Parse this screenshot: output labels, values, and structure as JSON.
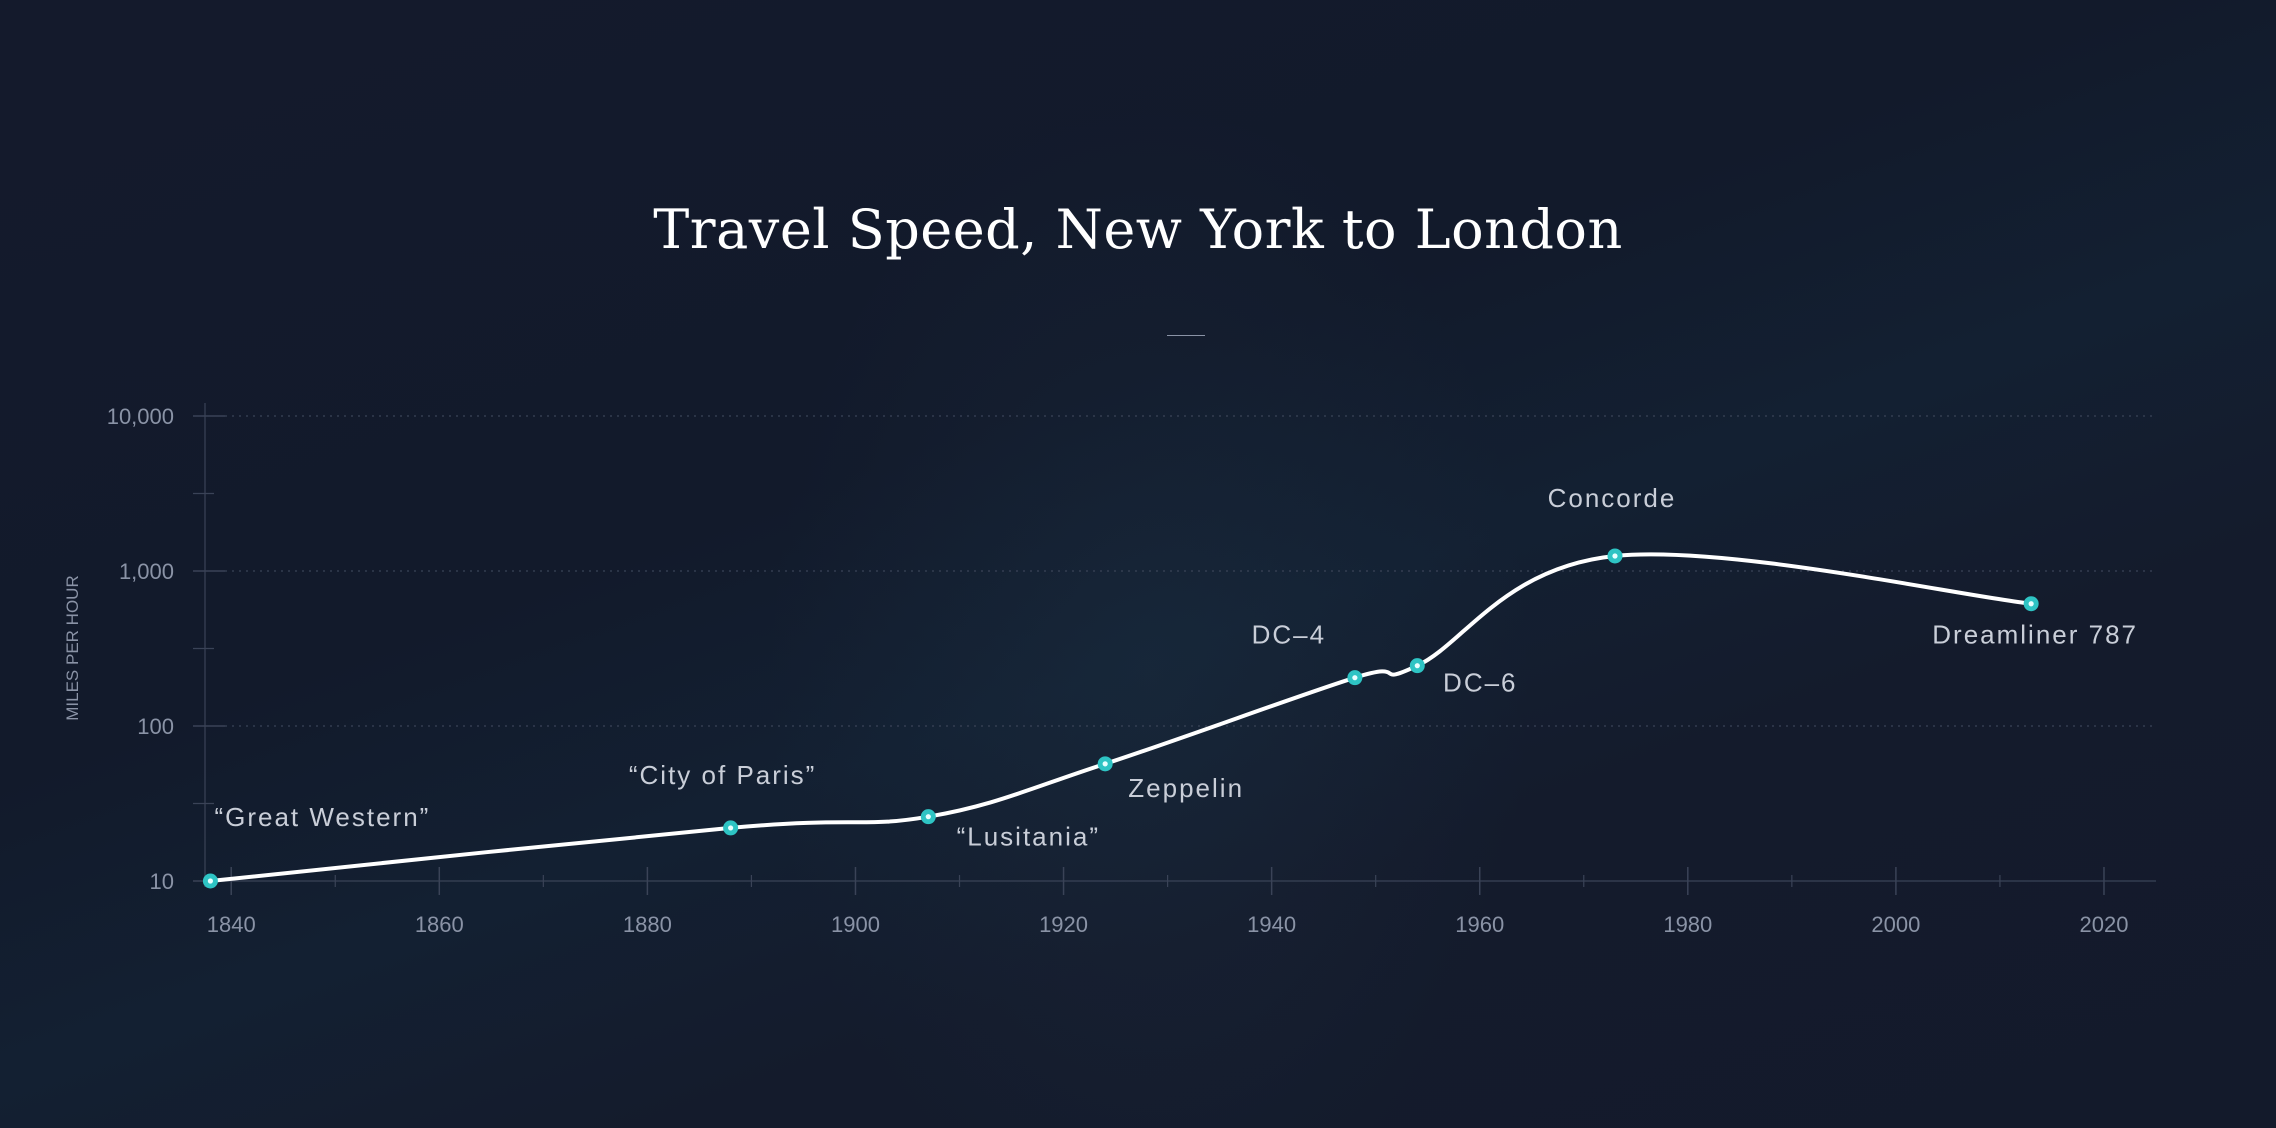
{
  "chart_data": {
    "type": "line",
    "title": "Travel Speed, New York to London",
    "ylabel": "MILES PER HOUR",
    "xlabel": "",
    "yscale": "log",
    "xlim": [
      1837,
      2025
    ],
    "ylim": [
      10,
      10000
    ],
    "grid": true,
    "x_ticks": [
      {
        "value": 1840,
        "label": "1840"
      },
      {
        "value": 1860,
        "label": "1860"
      },
      {
        "value": 1880,
        "label": "1880"
      },
      {
        "value": 1900,
        "label": "1900"
      },
      {
        "value": 1920,
        "label": "1920"
      },
      {
        "value": 1940,
        "label": "1940"
      },
      {
        "value": 1960,
        "label": "1960"
      },
      {
        "value": 1980,
        "label": "1980"
      },
      {
        "value": 2000,
        "label": "2000"
      },
      {
        "value": 2020,
        "label": "2020"
      }
    ],
    "y_ticks": [
      {
        "value": 10,
        "label": "10"
      },
      {
        "value": 100,
        "label": "100"
      },
      {
        "value": 1000,
        "label": "1,000"
      },
      {
        "value": 10000,
        "label": "10,000"
      }
    ],
    "points": [
      {
        "x": 1838,
        "y": 10,
        "label": "“Great Western”",
        "label_pos": "above"
      },
      {
        "x": 1888,
        "y": 22,
        "label": "“City of Paris”",
        "label_pos": "above"
      },
      {
        "x": 1907,
        "y": 26,
        "label": "“Lusitania”",
        "label_pos": "below"
      },
      {
        "x": 1924,
        "y": 57,
        "label": "Zeppelin",
        "label_pos": "below"
      },
      {
        "x": 1948,
        "y": 205,
        "label": "DC–4",
        "label_pos": "above"
      },
      {
        "x": 1954,
        "y": 245,
        "label": "DC–6",
        "label_pos": "below"
      },
      {
        "x": 1973,
        "y": 1250,
        "label": "Concorde",
        "label_pos": "above"
      },
      {
        "x": 2013,
        "y": 615,
        "label": "Dreamliner 787",
        "label_pos": "below"
      }
    ],
    "colors": {
      "line": "#ffffff",
      "marker": "#2ec4c4",
      "grid": "#3a4357",
      "axis_text": "#8a93a6",
      "label_text": "#c9ced8"
    }
  }
}
